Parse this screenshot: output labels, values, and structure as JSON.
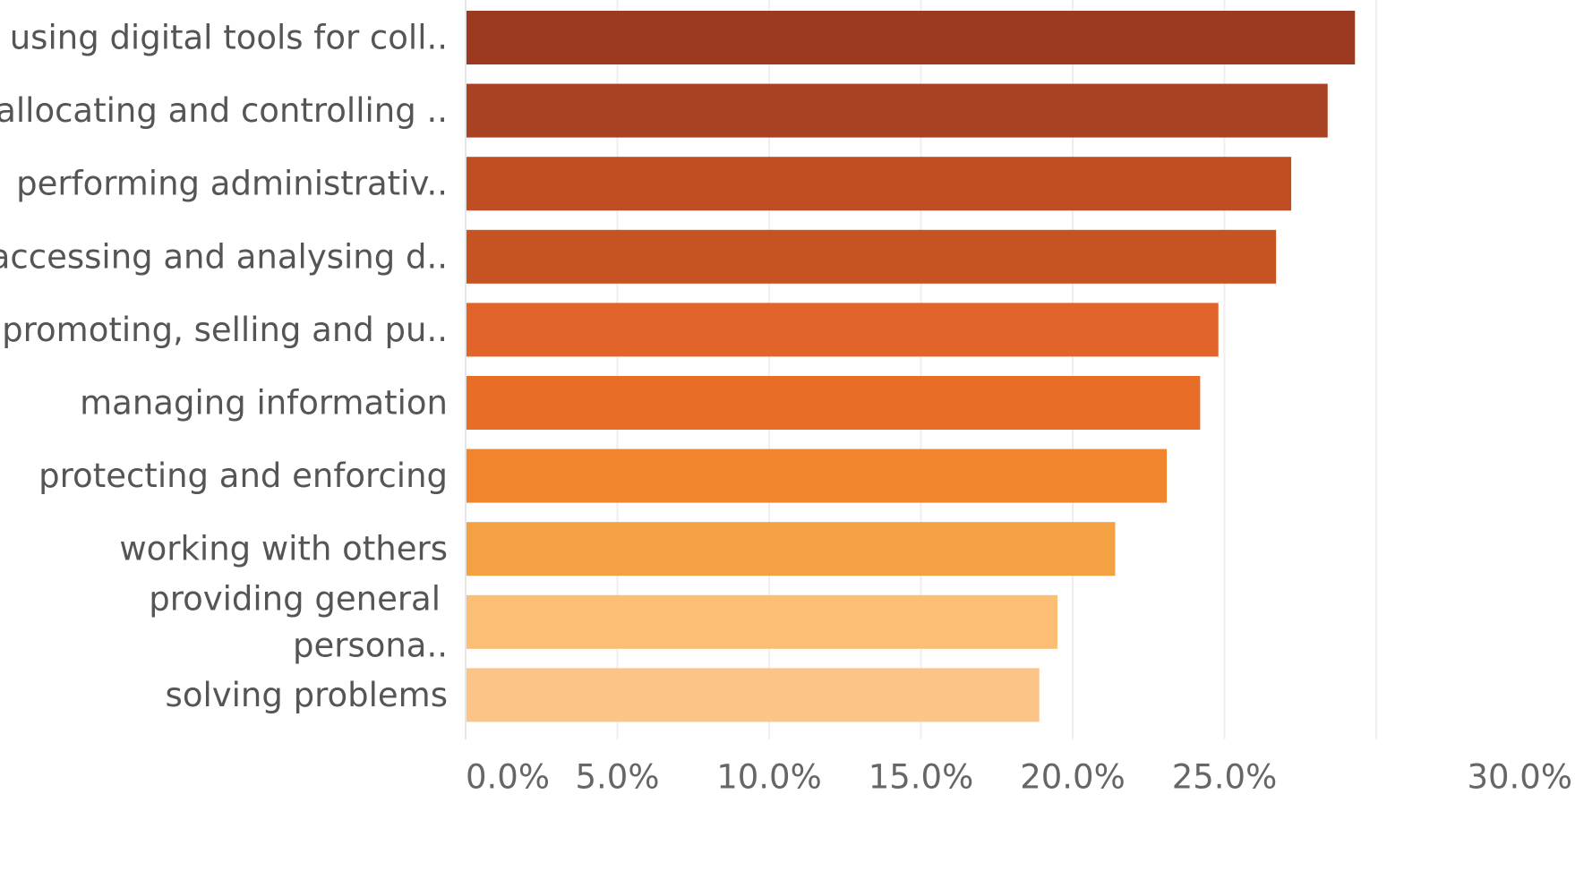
{
  "chart_data": {
    "type": "bar",
    "orientation": "horizontal",
    "categories": [
      [
        "using digital tools for coll.."
      ],
      [
        "allocating and controlling .."
      ],
      [
        "performing administrativ.."
      ],
      [
        "accessing and analysing d.."
      ],
      [
        "promoting, selling and pu.."
      ],
      [
        "managing information"
      ],
      [
        "protecting and enforcing"
      ],
      [
        "working with others"
      ],
      [
        "providing general",
        "persona.."
      ],
      [
        "solving problems"
      ]
    ],
    "values": [
      29.3,
      28.4,
      27.2,
      26.7,
      24.8,
      24.2,
      23.1,
      21.4,
      19.5,
      18.9
    ],
    "colors": [
      "#9b3a20",
      "#a94222",
      "#bf4f23",
      "#c65322",
      "#e3642a",
      "#e86d27",
      "#f0852d",
      "#f4a144",
      "#fcbd74",
      "#fdc487"
    ],
    "xlim": [
      0,
      30
    ],
    "xticks": [
      "0.0%",
      "5.0%",
      "10.0%",
      "15.0%",
      "20.0%",
      "25.0%",
      "30.0%"
    ],
    "grid": true,
    "title": "",
    "xlabel": "",
    "ylabel": ""
  }
}
